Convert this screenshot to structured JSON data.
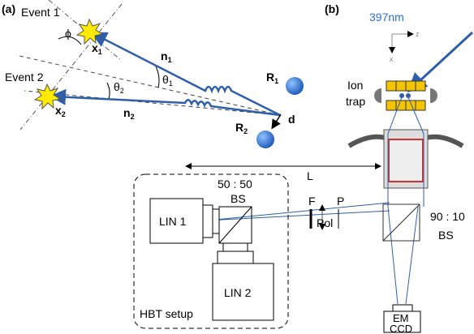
{
  "panel_a": {
    "label": "(a)",
    "event_1": "Event 1",
    "event_2": "Event 2",
    "x_1": {
      "symbol": "x",
      "subscript": "1"
    },
    "x_2": {
      "symbol": "x",
      "subscript": "2"
    },
    "n_1": {
      "symbol": "n",
      "subscript": "1"
    },
    "n_2": {
      "symbol": "n",
      "subscript": "2"
    },
    "theta_1": {
      "symbol": "θ",
      "subscript": "1"
    },
    "theta_2": {
      "symbol": "θ",
      "subscript": "2"
    },
    "r_1": {
      "symbol": "R",
      "subscript": "1"
    },
    "r_2": {
      "symbol": "R",
      "subscript": "2"
    },
    "phi": "ϕ",
    "d": "d"
  },
  "panel_b": {
    "label": "(b)",
    "laser": "397nm",
    "axis_z": "z",
    "axis_x": "x",
    "ion_trap": [
      "Ion",
      "trap"
    ],
    "bs_50": [
      "50 : 50",
      "BS"
    ],
    "distance": "L",
    "lin_1": "LIN 1",
    "lin_2": "LIN 2",
    "filter": "F",
    "polarizer": "P",
    "pol": "Pol",
    "bs_90": [
      "90 : 10",
      "BS"
    ],
    "camera": [
      "EM",
      "CCD"
    ],
    "hbt": "HBT setup"
  }
}
